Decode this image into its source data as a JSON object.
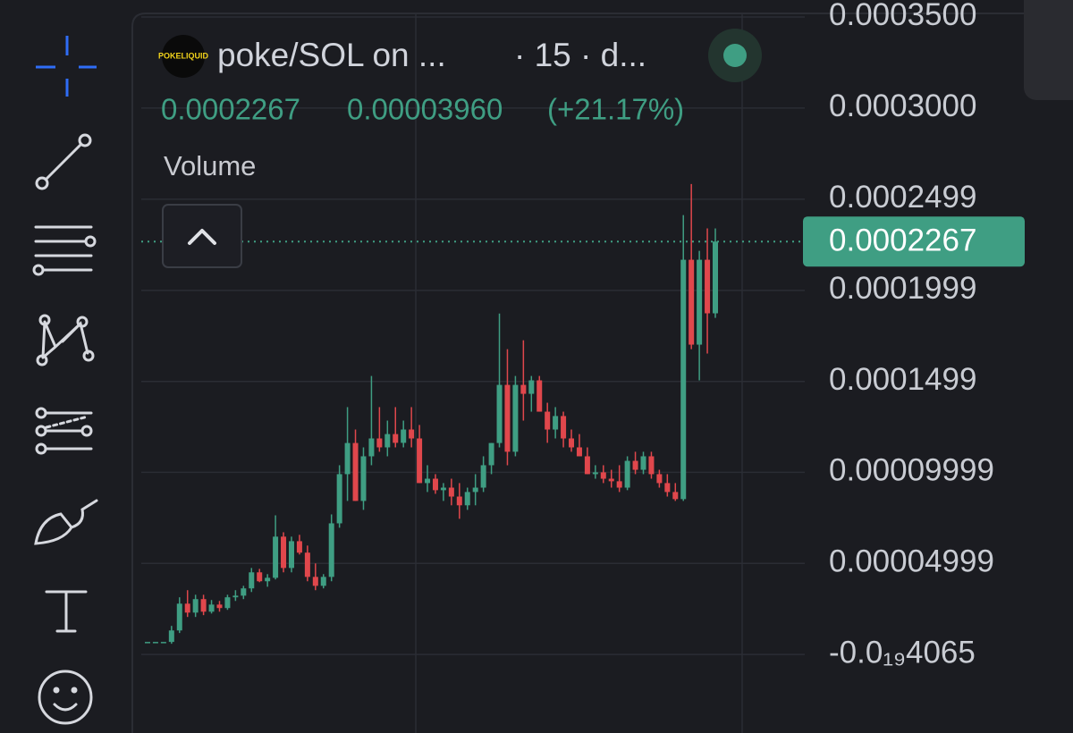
{
  "chart_data": {
    "type": "candlestick",
    "logo": "POKELIQUID",
    "title": "poke/SOL on ...",
    "interval": "· 15 · d...",
    "change": "0.00003960",
    "change_pct": "(+21.17%)",
    "indicator": "Volume",
    "last_price": 0.0002267,
    "up_color": "#3f9e83",
    "down_color": "#e0474c",
    "grid": true,
    "ylim": [
      -4.31e-05,
      0.0003593
    ],
    "yticks": [
      {
        "value": 0.00035,
        "label": "0.0003500"
      },
      {
        "value": 0.0003,
        "label": "0.0003000"
      },
      0.0002499,
      0.0001999,
      0.0001499,
      9.999e-05,
      4.999e-05,
      {
        "value": -4.065e-20,
        "label": "-0.0₁₉4065"
      }
    ],
    "open": [
      6.9e-06,
      6.9e-06,
      6.9e-06,
      6.9e-06,
      1.32e-05,
      2.79e-05,
      2.3e-05,
      3.04e-05,
      2.35e-05,
      2.74e-05,
      2.55e-05,
      3.14e-05,
      3.23e-05,
      3.63e-05,
      4.51e-05,
      4.02e-05,
      4.21e-05,
      6.47e-05,
      4.75e-05,
      6.22e-05,
      5.59e-05,
      4.26e-05,
      3.77e-05,
      4.26e-05,
      7.2e-05,
      9.9e-05,
      0.0001161,
      8.43e-05,
      0.0001088,
      0.0001186,
      0.0001137,
      0.000121,
      0.0001162,
      0.0001235,
      0.0001186,
      9.41e-05,
      9.65e-05,
      9.02e-05,
      9.16e-05,
      8.67e-05,
      8.19e-05,
      8.92e-05,
      9.16e-05,
      0.0001039,
      0.0001161,
      0.000148,
      0.0001113,
      0.000148,
      0.0001431,
      0.0001505,
      0.0001333,
      0.0001235,
      0.0001309,
      0.0001186,
      0.0001137,
      0.0001088,
      9.9e-05,
      0.0001,
      9.65e-05,
      9.51e-05,
      9.16e-05,
      0.0001063,
      0.0001014,
      0.0001088,
      9.9e-05,
      9.41e-05,
      8.92e-05,
      8.53e-05,
      0.0002167,
      0.0001701,
      0.0002167,
      0.0001873
    ],
    "high": [
      6.9e-06,
      6.9e-06,
      6.9e-06,
      1.57e-05,
      3.14e-05,
      3.53e-05,
      3.28e-05,
      3.28e-05,
      2.99e-05,
      2.94e-05,
      3.28e-05,
      3.53e-05,
      3.77e-05,
      4.75e-05,
      4.7e-05,
      4.41e-05,
      7.64e-05,
      6.71e-05,
      6.47e-05,
      6.57e-05,
      5.98e-05,
      5e-05,
      4.41e-05,
      7.69e-05,
      0.0001039,
      0.0001358,
      0.0001235,
      0.0001137,
      0.0001529,
      0.0001358,
      0.0001284,
      0.0001358,
      0.0001284,
      0.0001358,
      0.000126,
      0.0001039,
      9.9e-05,
      9.41e-05,
      9.65e-05,
      9.41e-05,
      9.16e-05,
      9.9e-05,
      0.0001088,
      0.0001161,
      0.0001872,
      0.0001676,
      0.0001529,
      0.0001725,
      0.0001529,
      0.0001529,
      0.0001382,
      0.0001358,
      0.0001333,
      0.0001235,
      0.000121,
      0.0001137,
      0.0001039,
      0.0001039,
      0.0001014,
      0.0001039,
      0.0001088,
      0.0001113,
      0.0001113,
      0.0001113,
      0.0001014,
      9.9e-05,
      9.41e-05,
      0.0002412,
      0.0002583,
      0.0002216,
      0.0002339,
      0.0002339
    ],
    "low": [
      6.9e-06,
      6.9e-06,
      6.9e-06,
      5.9e-06,
      1.18e-05,
      2.06e-05,
      2.06e-05,
      2.16e-05,
      2.25e-05,
      2.35e-05,
      2.45e-05,
      2.94e-05,
      3.04e-05,
      3.43e-05,
      3.97e-05,
      3.72e-05,
      4.12e-05,
      4.51e-05,
      4.51e-05,
      5.49e-05,
      4.02e-05,
      3.53e-05,
      3.63e-05,
      4.02e-05,
      6.96e-05,
      8.43e-05,
      8.43e-05,
      7.94e-05,
      0.0001039,
      0.0001113,
      0.0001088,
      0.0001137,
      0.0001137,
      0.0001137,
      9.41e-05,
      8.92e-05,
      8.82e-05,
      8.43e-05,
      8.19e-05,
      7.45e-05,
      7.94e-05,
      8.19e-05,
      8.92e-05,
      9.9e-05,
      0.0001137,
      0.0001039,
      0.0001088,
      0.0001284,
      0.0001333,
      0.0001333,
      0.0001162,
      0.0001186,
      0.0001137,
      0.0001113,
      0.0001088,
      9.9e-05,
      9.65e-05,
      9.41e-05,
      9.16e-05,
      8.92e-05,
      9.02e-05,
      9.9e-05,
      9.9e-05,
      9.65e-05,
      9.16e-05,
      8.67e-05,
      8.43e-05,
      8.43e-05,
      0.0001676,
      0.0001505,
      0.0001652,
      0.0001848
    ],
    "close": [
      6.9e-06,
      6.9e-06,
      6.9e-06,
      1.32e-05,
      2.79e-05,
      2.3e-05,
      3.04e-05,
      2.35e-05,
      2.74e-05,
      2.55e-05,
      3.14e-05,
      3.23e-05,
      3.63e-05,
      4.51e-05,
      4.02e-05,
      4.21e-05,
      6.47e-05,
      4.75e-05,
      6.22e-05,
      5.59e-05,
      4.26e-05,
      3.77e-05,
      4.26e-05,
      7.2e-05,
      9.9e-05,
      0.0001161,
      8.43e-05,
      0.0001088,
      0.0001186,
      0.0001137,
      0.000121,
      0.0001162,
      0.0001235,
      0.0001186,
      9.41e-05,
      9.65e-05,
      9.02e-05,
      9.16e-05,
      8.67e-05,
      8.19e-05,
      8.92e-05,
      9.16e-05,
      0.0001039,
      0.0001161,
      0.000148,
      0.0001113,
      0.000148,
      0.0001431,
      0.0001505,
      0.0001333,
      0.0001235,
      0.0001309,
      0.0001186,
      0.0001137,
      0.0001088,
      9.9e-05,
      0.0001,
      9.65e-05,
      9.51e-05,
      9.16e-05,
      0.0001063,
      0.0001014,
      0.0001088,
      9.9e-05,
      9.41e-05,
      8.92e-05,
      8.53e-05,
      0.0002167,
      0.0001701,
      0.0002167,
      0.0001873,
      0.0002267
    ]
  }
}
